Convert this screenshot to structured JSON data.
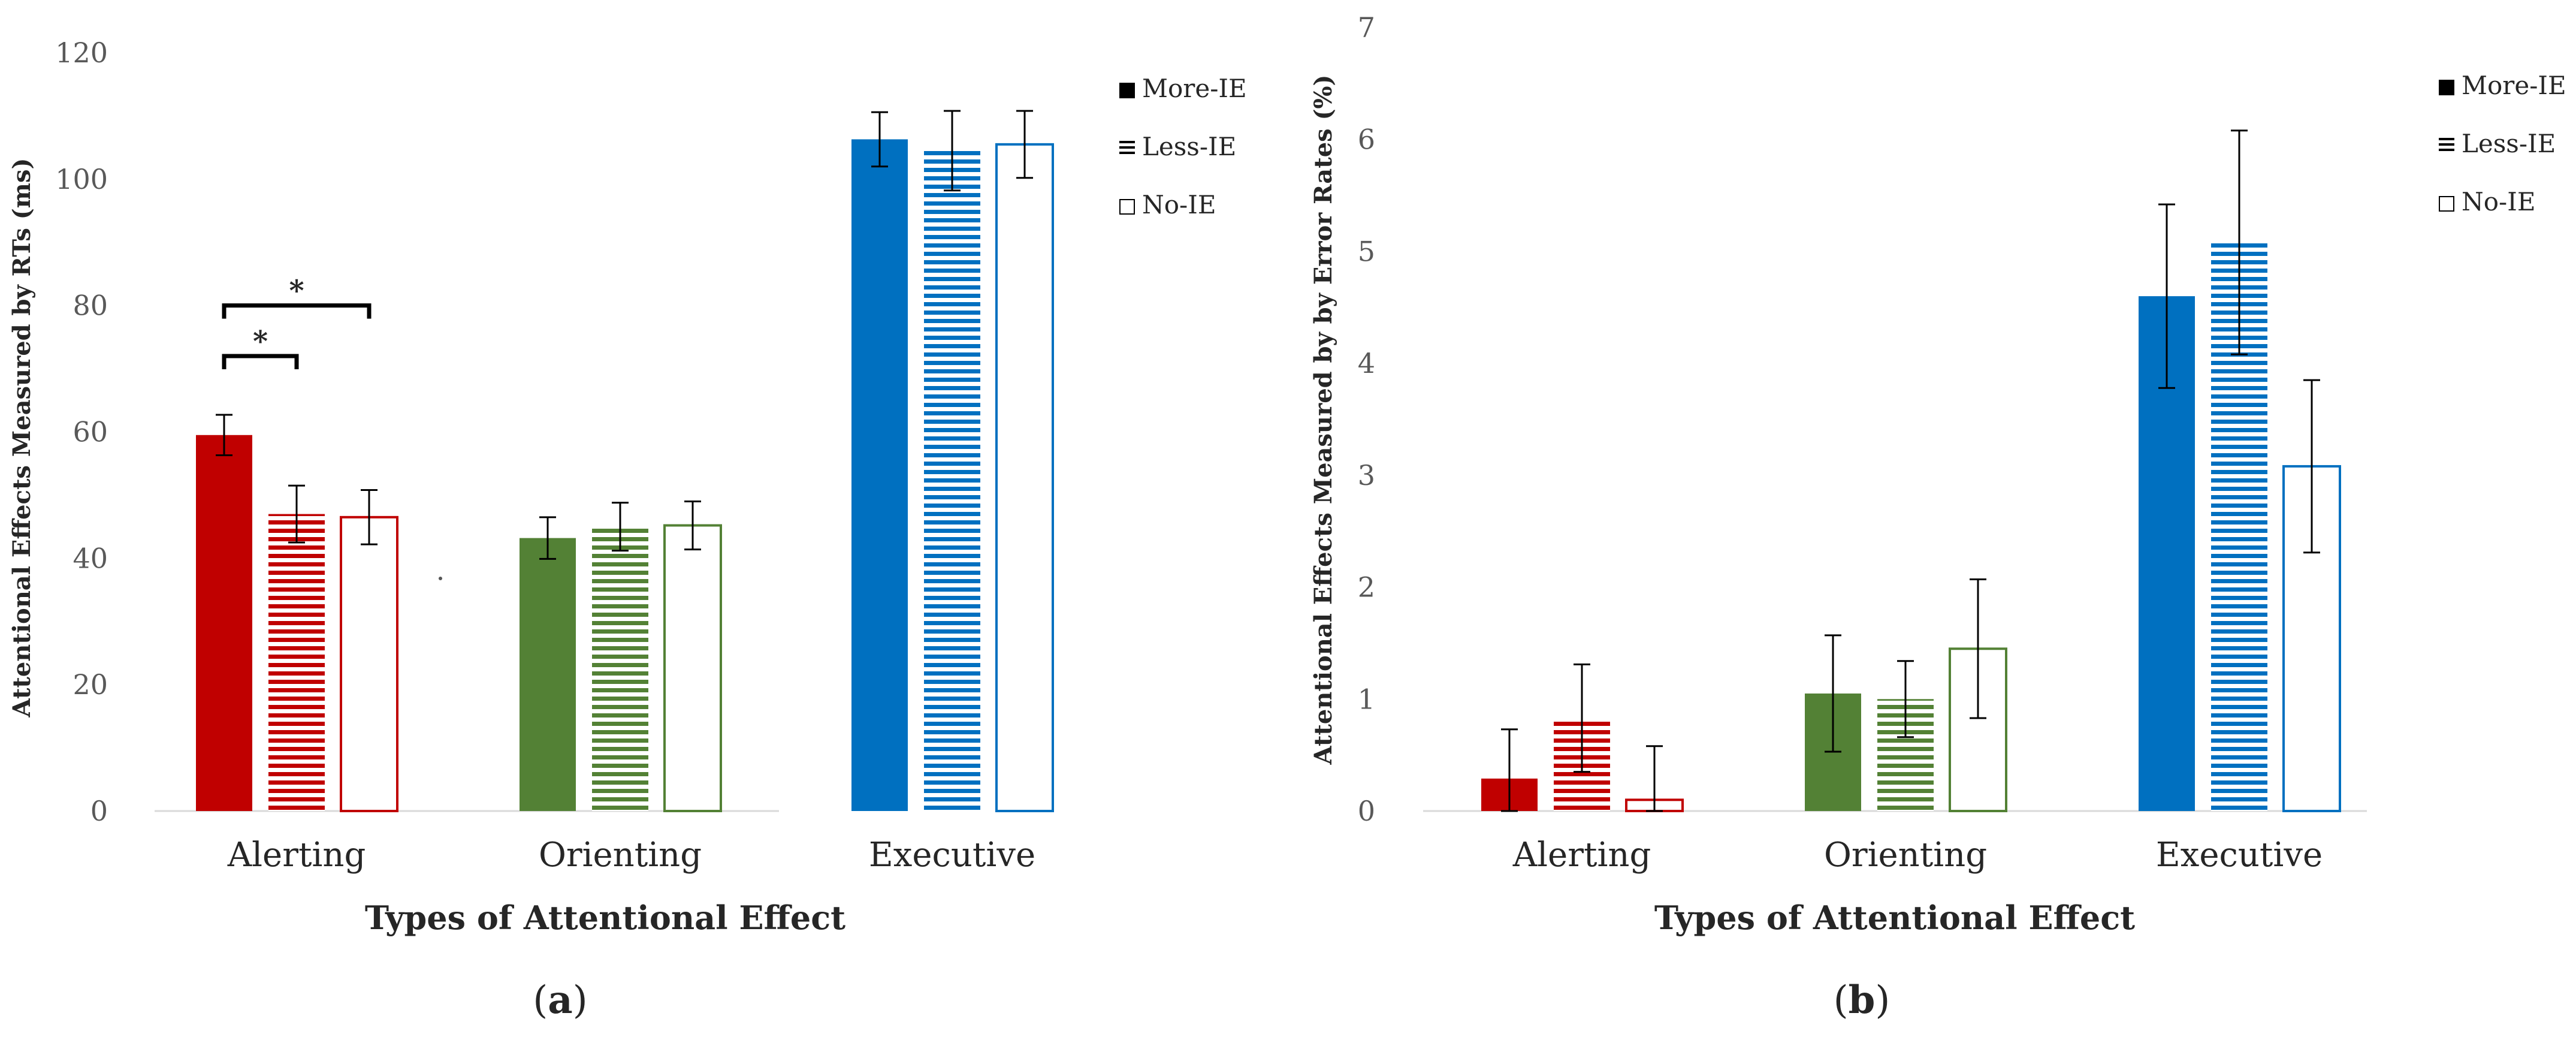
{
  "colors": {
    "alerting": "#C00000",
    "orienting": "#538135",
    "executive": "#0070C0",
    "axis": "#262626",
    "tick_text": "#595959"
  },
  "legend_items": [
    {
      "label": "More-IE",
      "style": "solid"
    },
    {
      "label": "Less-IE",
      "style": "striped"
    },
    {
      "label": "No-IE",
      "style": "hollow"
    }
  ],
  "chart_data": [
    {
      "panel_label": "(a)",
      "panel_letter": "a",
      "type": "bar",
      "categories": [
        "Alerting",
        "Orienting",
        "Executive"
      ],
      "series": [
        {
          "name": "More-IE",
          "style": "solid",
          "values": [
            59.5,
            43.2,
            106.3
          ],
          "errors": [
            3.2,
            3.3,
            4.3
          ]
        },
        {
          "name": "Less-IE",
          "style": "striped",
          "values": [
            47.0,
            45.0,
            104.5
          ],
          "errors": [
            4.5,
            3.8,
            6.3
          ]
        },
        {
          "name": "No-IE",
          "style": "hollow",
          "values": [
            46.5,
            45.2,
            105.5
          ],
          "errors": [
            4.3,
            3.8,
            5.3
          ]
        }
      ],
      "ylim": [
        0,
        120
      ],
      "yticks": [
        "0",
        "20",
        "40",
        "60",
        "80",
        "100",
        "120"
      ],
      "xlabel": "Types of Attentional Effect",
      "ylabel": "Attentional Effects Measured by RTs (ms)",
      "significance": [
        {
          "category": "Alerting",
          "from": "More-IE",
          "to": "Less-IE",
          "y": 72,
          "label": "*"
        },
        {
          "category": "Alerting",
          "from": "More-IE",
          "to": "No-IE",
          "y": 80,
          "label": "*"
        }
      ],
      "grid": false,
      "legend_position": "top-right"
    },
    {
      "panel_label": "(b)",
      "panel_letter": "b",
      "type": "bar",
      "categories": [
        "Alerting",
        "Orienting",
        "Executive"
      ],
      "series": [
        {
          "name": "More-IE",
          "style": "solid",
          "values": [
            0.29,
            1.05,
            4.6
          ],
          "errors": [
            0.44,
            0.52,
            0.82
          ]
        },
        {
          "name": "Less-IE",
          "style": "striped",
          "values": [
            0.83,
            1.0,
            5.08
          ],
          "errors": [
            0.48,
            0.34,
            1.0
          ]
        },
        {
          "name": "No-IE",
          "style": "hollow",
          "values": [
            0.1,
            1.45,
            3.08
          ],
          "errors": [
            0.48,
            0.62,
            0.77
          ]
        }
      ],
      "ylim": [
        0,
        7
      ],
      "yticks": [
        "0",
        "1",
        "2",
        "3",
        "4",
        "5",
        "6",
        "7"
      ],
      "xlabel": "Types of Attentional Effect",
      "ylabel": "Attentional Effects Measured by by Error Rates (%)",
      "significance": [],
      "grid": false,
      "legend_position": "top-right"
    }
  ]
}
